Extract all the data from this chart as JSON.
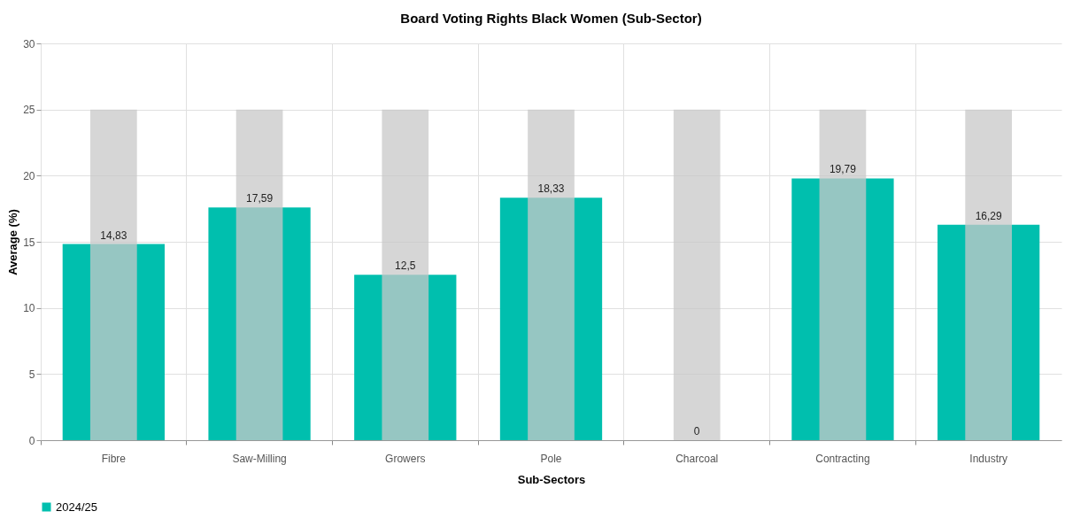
{
  "chart_data": {
    "type": "bar",
    "title": "Board Voting Rights Black Women (Sub-Sector)",
    "xlabel": "Sub-Sectors",
    "ylabel": "Average (%)",
    "categories": [
      "Fibre",
      "Saw-Milling",
      "Growers",
      "Pole",
      "Charcoal",
      "Contracting",
      "Industry"
    ],
    "series": [
      {
        "name": "2024/25",
        "color": "#00bfae",
        "values": [
          14.83,
          17.59,
          12.5,
          18.33,
          0,
          19.79,
          16.29
        ],
        "value_labels": [
          "14,83",
          "17,59",
          "12,5",
          "18,33",
          "0",
          "19,79",
          "16,29"
        ]
      },
      {
        "color": "#c8c8c8",
        "values": [
          25,
          25,
          25,
          25,
          25,
          25,
          25
        ]
      }
    ],
    "ylim": [
      0,
      30
    ],
    "yticks": [
      0,
      5,
      10,
      15,
      20,
      25,
      30
    ],
    "grid": true,
    "legend": "bottom"
  }
}
